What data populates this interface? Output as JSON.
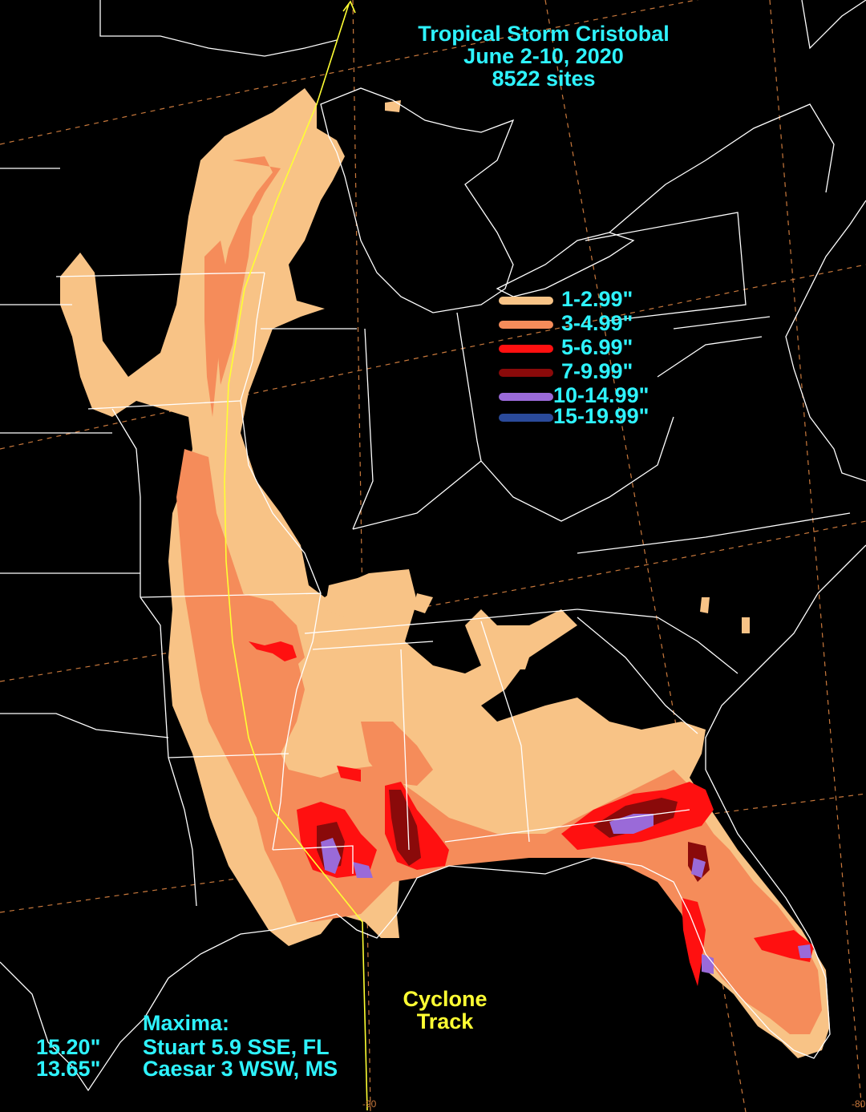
{
  "title": {
    "line1": "Tropical Storm Cristobal",
    "line2": "June 2-10, 2020",
    "line3": "8522 sites"
  },
  "legend": [
    {
      "label": "1-2.99\"",
      "color": "#f8c386"
    },
    {
      "label": "3-4.99\"",
      "color": "#f58c5a"
    },
    {
      "label": "5-6.99\"",
      "color": "#ff1010"
    },
    {
      "label": "7-9.99\"",
      "color": "#8a0a0a"
    },
    {
      "label": "10-14.99\"",
      "color": "#9a6ad8"
    },
    {
      "label": "15-19.99\"",
      "color": "#2a4a9a"
    }
  ],
  "maxima": {
    "heading": "Maxima:",
    "rows": [
      {
        "value": "15.20\"",
        "location": "Stuart 5.9 SSE, FL"
      },
      {
        "value": "13.65\"",
        "location": "Caesar 3 WSW, MS"
      }
    ]
  },
  "track_label": {
    "line1": "Cyclone",
    "line2": "Track"
  },
  "longitude_labels": [
    "-90",
    "-80"
  ],
  "colors": {
    "background": "#000000",
    "boundary": "#ffffff",
    "track": "#ffff33",
    "graticule": "#c8783c",
    "text": "#2ef3ff"
  }
}
